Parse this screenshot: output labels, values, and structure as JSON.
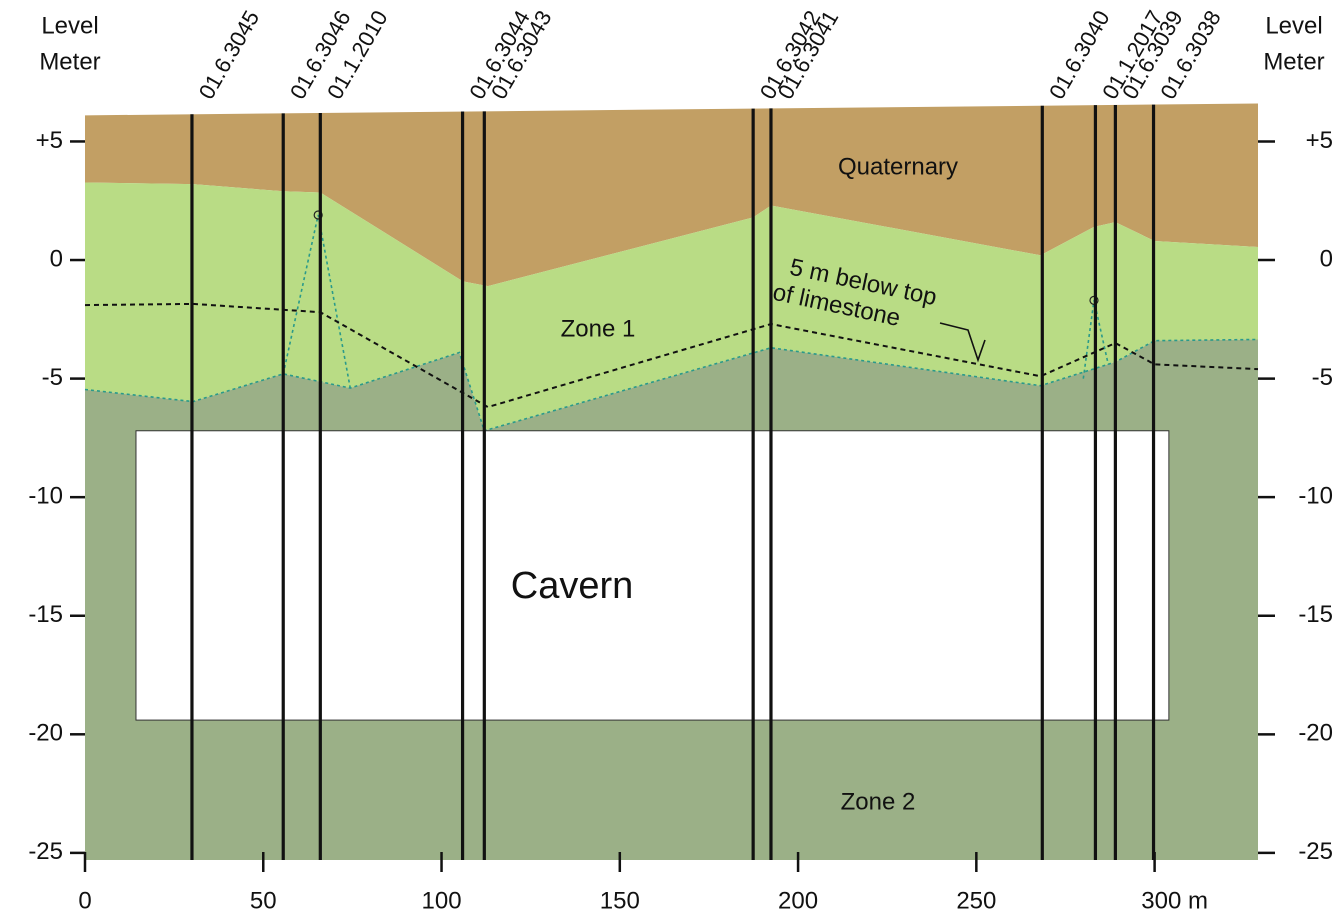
{
  "chart_data": {
    "type": "cross-section",
    "y_label": [
      "Level",
      "Meter"
    ],
    "y2_label": [
      "Level",
      "Meter"
    ],
    "xlim": [
      0,
      329
    ],
    "ylim": [
      -25.3,
      6.2
    ],
    "xticks": [
      0,
      50,
      100,
      150,
      200,
      250,
      {
        "value": 300,
        "label": "300 m"
      }
    ],
    "yticks": [
      {
        "value": 5,
        "label": "+5"
      },
      0,
      -5,
      -10,
      -15,
      -20,
      -25
    ],
    "layers": [
      {
        "name": "Quaternary",
        "color": "#c29f64",
        "top": {
          "x": [
            0,
            329
          ],
          "y": [
            6.1,
            6.6
          ]
        }
      },
      {
        "name": "Zone 1",
        "color": "#b9dc85",
        "top": {
          "x": [
            0,
            30.3,
            55.6,
            66,
            106,
            113,
            187.4,
            192.4,
            268,
            283,
            289,
            300,
            329
          ],
          "y": [
            3.27,
            3.2,
            2.9,
            2.85,
            -0.9,
            -1.1,
            1.8,
            2.3,
            0.2,
            1.4,
            1.6,
            0.8,
            0.55
          ]
        }
      },
      {
        "name": "Zone 2",
        "color": "#9bb087",
        "top": {
          "x": [
            0,
            30.3,
            55.6,
            74.4,
            105,
            112,
            192.4,
            268,
            289,
            300,
            329
          ],
          "y": [
            -5.46,
            -5.97,
            -4.8,
            -5.4,
            -3.9,
            -7.2,
            -3.7,
            -5.3,
            -4.3,
            -3.4,
            -3.35
          ]
        }
      }
    ],
    "peaks": [
      {
        "x": [
          55.6,
          65.4,
          74.4
        ],
        "y": [
          -4.8,
          1.9,
          -5.4
        ]
      },
      {
        "x": [
          280,
          283,
          287
        ],
        "y": [
          -5.0,
          -1.7,
          -4.4
        ]
      }
    ],
    "limestone_line": {
      "label": [
        "5 m below top",
        "of limestone"
      ],
      "x": [
        0,
        30.3,
        66,
        113,
        192.4,
        268,
        289,
        300,
        329
      ],
      "y": [
        -1.9,
        -1.85,
        -2.2,
        -6.2,
        -2.7,
        -4.9,
        -3.5,
        -4.4,
        -4.6
      ]
    },
    "cavern": {
      "name": "Cavern",
      "x": [
        14.3,
        304
      ],
      "y": [
        -7.2,
        -19.4
      ]
    },
    "boreholes": [
      {
        "name": "01.6.3045",
        "x": 30
      },
      {
        "name": "01.6.3046",
        "x": 55.6
      },
      {
        "name": "01.1.2010",
        "x": 66
      },
      {
        "name": "01.6.3044",
        "x": 105.9
      },
      {
        "name": "01.6.3043",
        "x": 112
      },
      {
        "name": "01.6.3042",
        "x": 187.4
      },
      {
        "name": "01.6.3041",
        "x": 192.4
      },
      {
        "name": "01.6.3040",
        "x": 268.5
      },
      {
        "name": "01.1.2017",
        "x": 283.4
      },
      {
        "name": "01.6.3039",
        "x": 289
      },
      {
        "name": "01.6.3038",
        "x": 299.7
      }
    ]
  }
}
